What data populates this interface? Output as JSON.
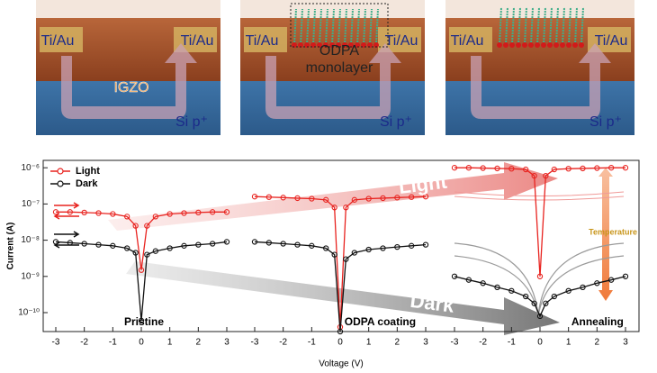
{
  "schematics": [
    {
      "labels": [
        "Ti/Au",
        "Ti/Au",
        "IGZO",
        "Si p⁺"
      ]
    },
    {
      "labels": [
        "Ti/Au",
        "Ti/Au",
        "ODPA",
        "monolayer",
        "Si p⁺"
      ]
    },
    {
      "labels": [
        "Ti/Au",
        "Ti/Au",
        "Si p⁺"
      ]
    }
  ],
  "chart_data": {
    "type": "line",
    "xlabel": "Voltage (V)",
    "ylabel": "Current (A)",
    "log_y": true,
    "ylim": [
      3e-11,
      1.6e-06
    ],
    "yticks": [
      {
        "value": 1e-10,
        "label": "10⁻¹⁰"
      },
      {
        "value": 1e-09,
        "label": "10⁻⁹"
      },
      {
        "value": 1e-08,
        "label": "10⁻⁸"
      },
      {
        "value": 1e-07,
        "label": "10⁻⁷"
      },
      {
        "value": 1e-06,
        "label": "10⁻⁶"
      }
    ],
    "xlim": [
      -3,
      3
    ],
    "xticks": [
      -3,
      -2,
      -1,
      0,
      1,
      2,
      3
    ],
    "annotations": [
      "Light",
      "Dark",
      "Temperature"
    ],
    "legend": "upper left",
    "panels": [
      {
        "label": "Pristine",
        "series": [
          {
            "name": "Light",
            "color": "#e8231f",
            "x": [
              -3,
              -2.5,
              -2,
              -1.5,
              -1,
              -0.5,
              -0.2,
              0,
              0.2,
              0.5,
              1,
              1.5,
              2,
              2.5,
              3
            ],
            "values": [
              6e-08,
              6e-08,
              5.8e-08,
              5.6e-08,
              5.3e-08,
              4.5e-08,
              2.5e-08,
              1.5e-09,
              2.5e-08,
              4.5e-08,
              5.3e-08,
              5.6e-08,
              5.8e-08,
              6e-08,
              6e-08
            ]
          },
          {
            "name": "Dark",
            "color": "#111111",
            "x": [
              -3,
              -2.5,
              -2,
              -1.5,
              -1,
              -0.5,
              -0.2,
              0,
              0.2,
              0.5,
              1,
              1.5,
              2,
              2.5,
              3
            ],
            "values": [
              9e-09,
              8.5e-09,
              8e-09,
              7.5e-09,
              7e-09,
              6e-09,
              4.5e-09,
              6e-11,
              4e-09,
              5e-09,
              6e-09,
              7e-09,
              7.5e-09,
              8e-09,
              9e-09
            ]
          }
        ]
      },
      {
        "label": "ODPA coating",
        "series": [
          {
            "name": "Light",
            "color": "#e8231f",
            "x": [
              -3,
              -2.5,
              -2,
              -1.5,
              -1,
              -0.5,
              -0.2,
              0,
              0.2,
              0.5,
              1,
              1.5,
              2,
              2.5,
              3
            ],
            "values": [
              1.6e-07,
              1.55e-07,
              1.5e-07,
              1.45e-07,
              1.4e-07,
              1.3e-07,
              8e-08,
              4e-11,
              8e-08,
              1.3e-07,
              1.4e-07,
              1.45e-07,
              1.5e-07,
              1.55e-07,
              1.6e-07
            ]
          },
          {
            "name": "Dark",
            "color": "#111111",
            "x": [
              -3,
              -2.5,
              -2,
              -1.5,
              -1,
              -0.5,
              -0.2,
              0,
              0.2,
              0.5,
              1,
              1.5,
              2,
              2.5,
              3
            ],
            "values": [
              9e-09,
              8.5e-09,
              8e-09,
              7.5e-09,
              7e-09,
              6e-09,
              4e-09,
              3e-11,
              3e-09,
              4.5e-09,
              5.5e-09,
              6e-09,
              6.5e-09,
              7e-09,
              7.5e-09
            ]
          }
        ]
      },
      {
        "label": "Annealing",
        "series": [
          {
            "name": "Light",
            "color": "#e8231f",
            "x": [
              -3,
              -2.5,
              -2,
              -1.5,
              -1,
              -0.5,
              -0.2,
              0,
              0.2,
              0.5,
              1,
              1.5,
              2,
              2.5,
              3
            ],
            "values": [
              1e-06,
              1e-06,
              9.8e-07,
              9.6e-07,
              9.4e-07,
              9e-07,
              6e-07,
              1e-09,
              6e-07,
              9e-07,
              9.4e-07,
              9.6e-07,
              9.8e-07,
              1e-06,
              1e-06
            ]
          },
          {
            "name": "Dark",
            "color": "#111111",
            "x": [
              -3,
              -2.5,
              -2,
              -1.5,
              -1,
              -0.5,
              -0.2,
              0,
              0.2,
              0.5,
              1,
              1.5,
              2,
              2.5,
              3
            ],
            "values": [
              1e-09,
              8e-10,
              6.5e-10,
              5e-10,
              4e-10,
              2.8e-10,
              1.8e-10,
              8e-11,
              1.8e-10,
              2.8e-10,
              4e-10,
              5e-10,
              6.5e-10,
              8e-10,
              1e-09
            ]
          }
        ]
      }
    ]
  }
}
